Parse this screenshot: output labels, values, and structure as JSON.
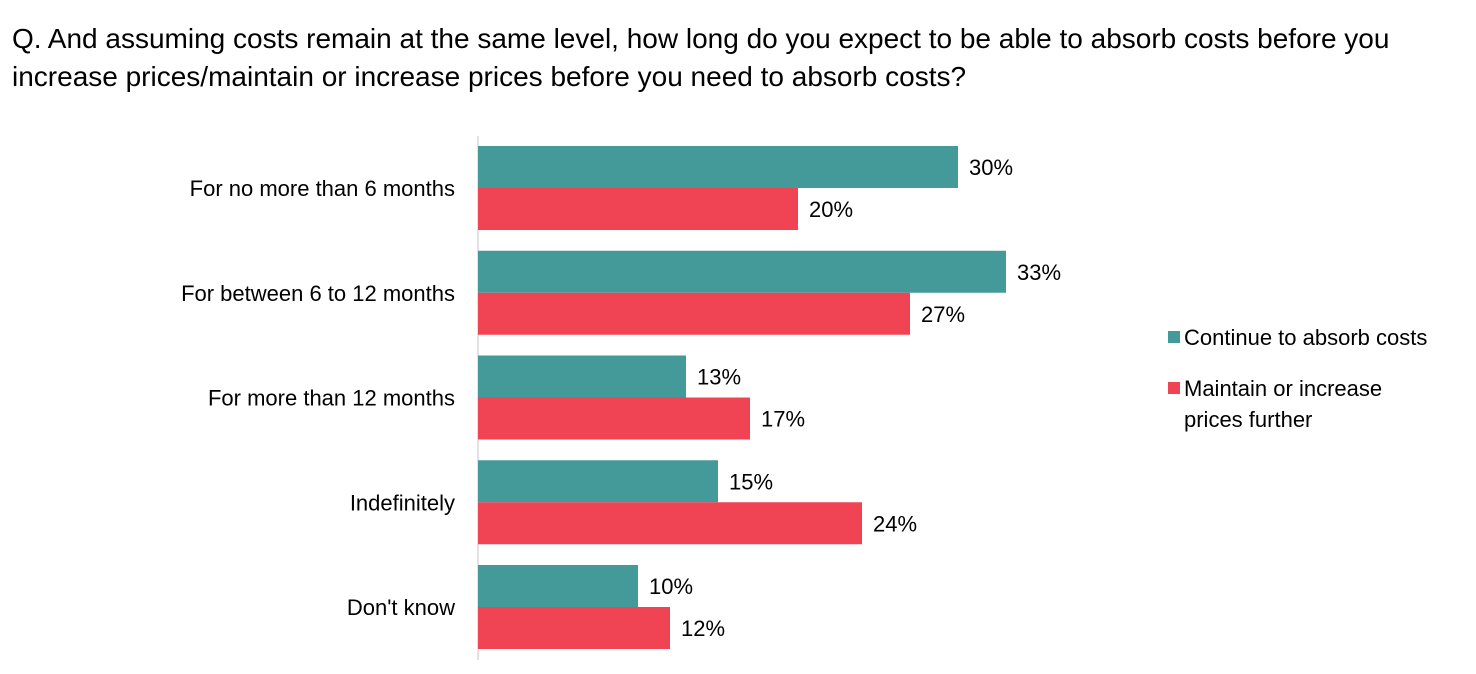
{
  "chart_data": {
    "type": "bar",
    "orientation": "horizontal",
    "title": "Q. And assuming costs remain at the same level, how long do you expect to be able to absorb costs before you increase prices/maintain or increase prices before you need to absorb costs?",
    "categories": [
      "For no more than 6 months",
      "For between 6 to 12 months",
      "For more than 12 months",
      "Indefinitely",
      "Don't know"
    ],
    "series": [
      {
        "name": "Continue to absorb costs",
        "color": "#439A98",
        "values": [
          30,
          33,
          13,
          15,
          10
        ],
        "labels": [
          "30%",
          "33%",
          "13%",
          "15%",
          "10%"
        ]
      },
      {
        "name": "Maintain or increase prices further",
        "color": "#F04354",
        "values": [
          20,
          27,
          17,
          24,
          12
        ],
        "labels": [
          "20%",
          "27%",
          "17%",
          "24%",
          "12%"
        ]
      }
    ],
    "xlim": [
      0,
      40
    ],
    "grid": false,
    "legend_position": "right"
  }
}
